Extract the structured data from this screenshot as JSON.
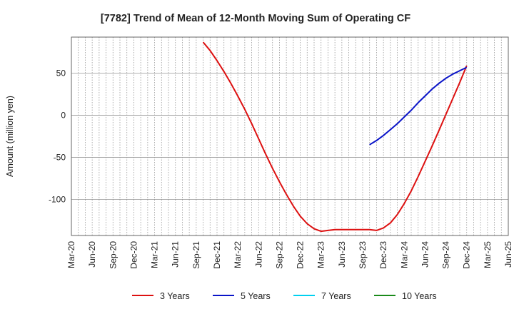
{
  "chart_data": {
    "type": "line",
    "title": "[7782]  Trend of Mean of 12-Month Moving Sum of Operating CF",
    "xlabel": "",
    "ylabel": "Amount (million yen)",
    "ylim": [
      -143,
      93
    ],
    "yticks": [
      50,
      0,
      -50,
      -100
    ],
    "grid": true,
    "legend_position": "bottom",
    "x_tick_labels": [
      "Mar-20",
      "Jun-20",
      "Sep-20",
      "Dec-20",
      "Mar-21",
      "Jun-21",
      "Sep-21",
      "Dec-21",
      "Mar-22",
      "Jun-22",
      "Sep-22",
      "Dec-22",
      "Mar-23",
      "Jun-23",
      "Sep-23",
      "Dec-23",
      "Mar-24",
      "Jun-24",
      "Sep-24",
      "Dec-24",
      "Mar-25",
      "Jun-25"
    ],
    "series": [
      {
        "name": "3 Years",
        "color": "#dd1111",
        "x": [
          "Oct-21",
          "Nov-21",
          "Dec-21",
          "Jan-22",
          "Feb-22",
          "Mar-22",
          "Apr-22",
          "May-22",
          "Jun-22",
          "Jul-22",
          "Aug-22",
          "Sep-22",
          "Oct-22",
          "Nov-22",
          "Dec-22",
          "Jan-23",
          "Feb-23",
          "Mar-23",
          "Apr-23",
          "May-23",
          "Jun-23",
          "Jul-23",
          "Aug-23",
          "Sep-23",
          "Oct-23",
          "Nov-23",
          "Dec-23",
          "Jan-24",
          "Feb-24",
          "Mar-24",
          "Apr-24",
          "May-24",
          "Jun-24",
          "Jul-24",
          "Aug-24",
          "Sep-24",
          "Oct-24",
          "Nov-24",
          "Dec-24"
        ],
        "values": [
          87,
          77,
          65,
          52,
          38,
          23,
          7,
          -10,
          -28,
          -46,
          -63,
          -79,
          -94,
          -108,
          -120,
          -129,
          -135,
          -138,
          -137,
          -136,
          -136,
          -136,
          -136,
          -136,
          -136,
          -137,
          -134,
          -128,
          -118,
          -105,
          -90,
          -73,
          -55,
          -37,
          -18,
          1,
          20,
          39,
          59
        ]
      },
      {
        "name": "5 Years",
        "color": "#0a14c8",
        "x": [
          "Oct-23",
          "Nov-23",
          "Dec-23",
          "Jan-24",
          "Feb-24",
          "Mar-24",
          "Apr-24",
          "May-24",
          "Jun-24",
          "Jul-24",
          "Aug-24",
          "Sep-24",
          "Oct-24",
          "Nov-24",
          "Dec-24"
        ],
        "values": [
          -35,
          -30,
          -24,
          -17,
          -10,
          -2,
          6,
          15,
          23,
          31,
          38,
          44,
          49,
          53,
          57
        ]
      },
      {
        "name": "7 Years",
        "color": "#00d0f0",
        "x": [],
        "values": []
      },
      {
        "name": "10 Years",
        "color": "#1a8a1a",
        "x": [],
        "values": []
      }
    ]
  }
}
